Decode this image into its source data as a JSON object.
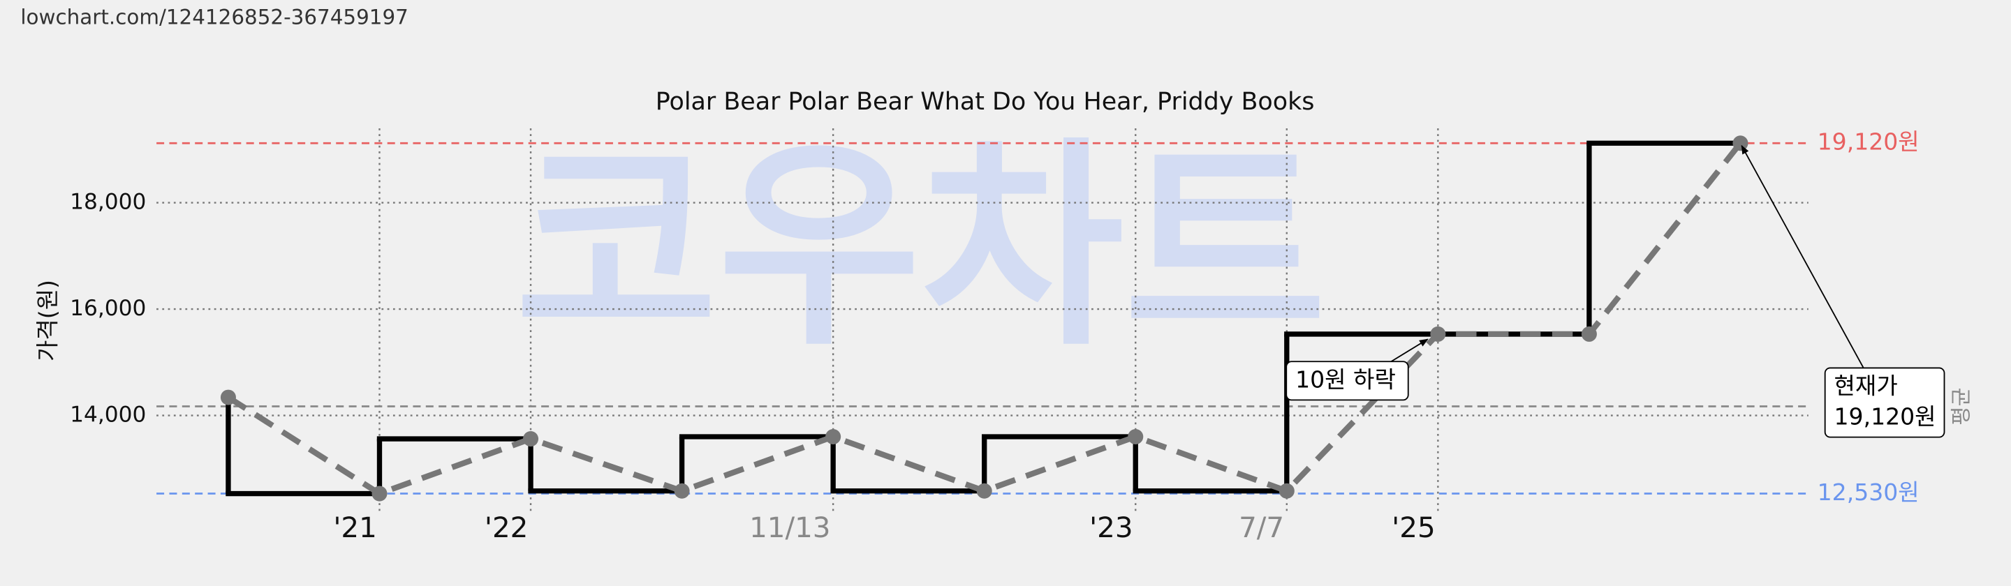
{
  "source": "lowchart.com/124126852-367459197",
  "chart_data": {
    "type": "step-line",
    "title": "Polar Bear Polar Bear What Do You Hear, Priddy Books",
    "watermark": "코우차트",
    "y_label": "가격(원)",
    "categories": [
      null,
      "'21",
      "'22",
      null,
      "11/13",
      null,
      "'23",
      "7/7",
      "'25",
      null,
      null
    ],
    "category_label_colors": [
      null,
      "#111111",
      "#111111",
      null,
      "#888888",
      null,
      "#111111",
      "#888888",
      "#111111",
      null,
      null
    ],
    "values": [
      14340,
      12530,
      13560,
      12580,
      13600,
      12580,
      13600,
      12580,
      15530,
      15530,
      19120
    ],
    "step_color": "#000000",
    "line_color": "#777777",
    "ylim": [
      12170,
      19640
    ],
    "yticks": [
      {
        "value": 14000,
        "label": "14,000"
      },
      {
        "value": 16000,
        "label": "16,000"
      },
      {
        "value": 18000,
        "label": "18,000"
      }
    ],
    "grid": true,
    "reference_lines": [
      {
        "value": 19120,
        "label": "19,120원",
        "color": "#e86060"
      },
      {
        "value": 12530,
        "label": "12,530원",
        "color": "#6a95ee"
      },
      {
        "value": 14170,
        "label": "평균",
        "color": "#888888"
      }
    ],
    "annotations": [
      {
        "index": 8,
        "text": [
          "10원 하락"
        ]
      },
      {
        "index": 10,
        "text": [
          "현재가",
          "19,120원"
        ]
      }
    ]
  }
}
